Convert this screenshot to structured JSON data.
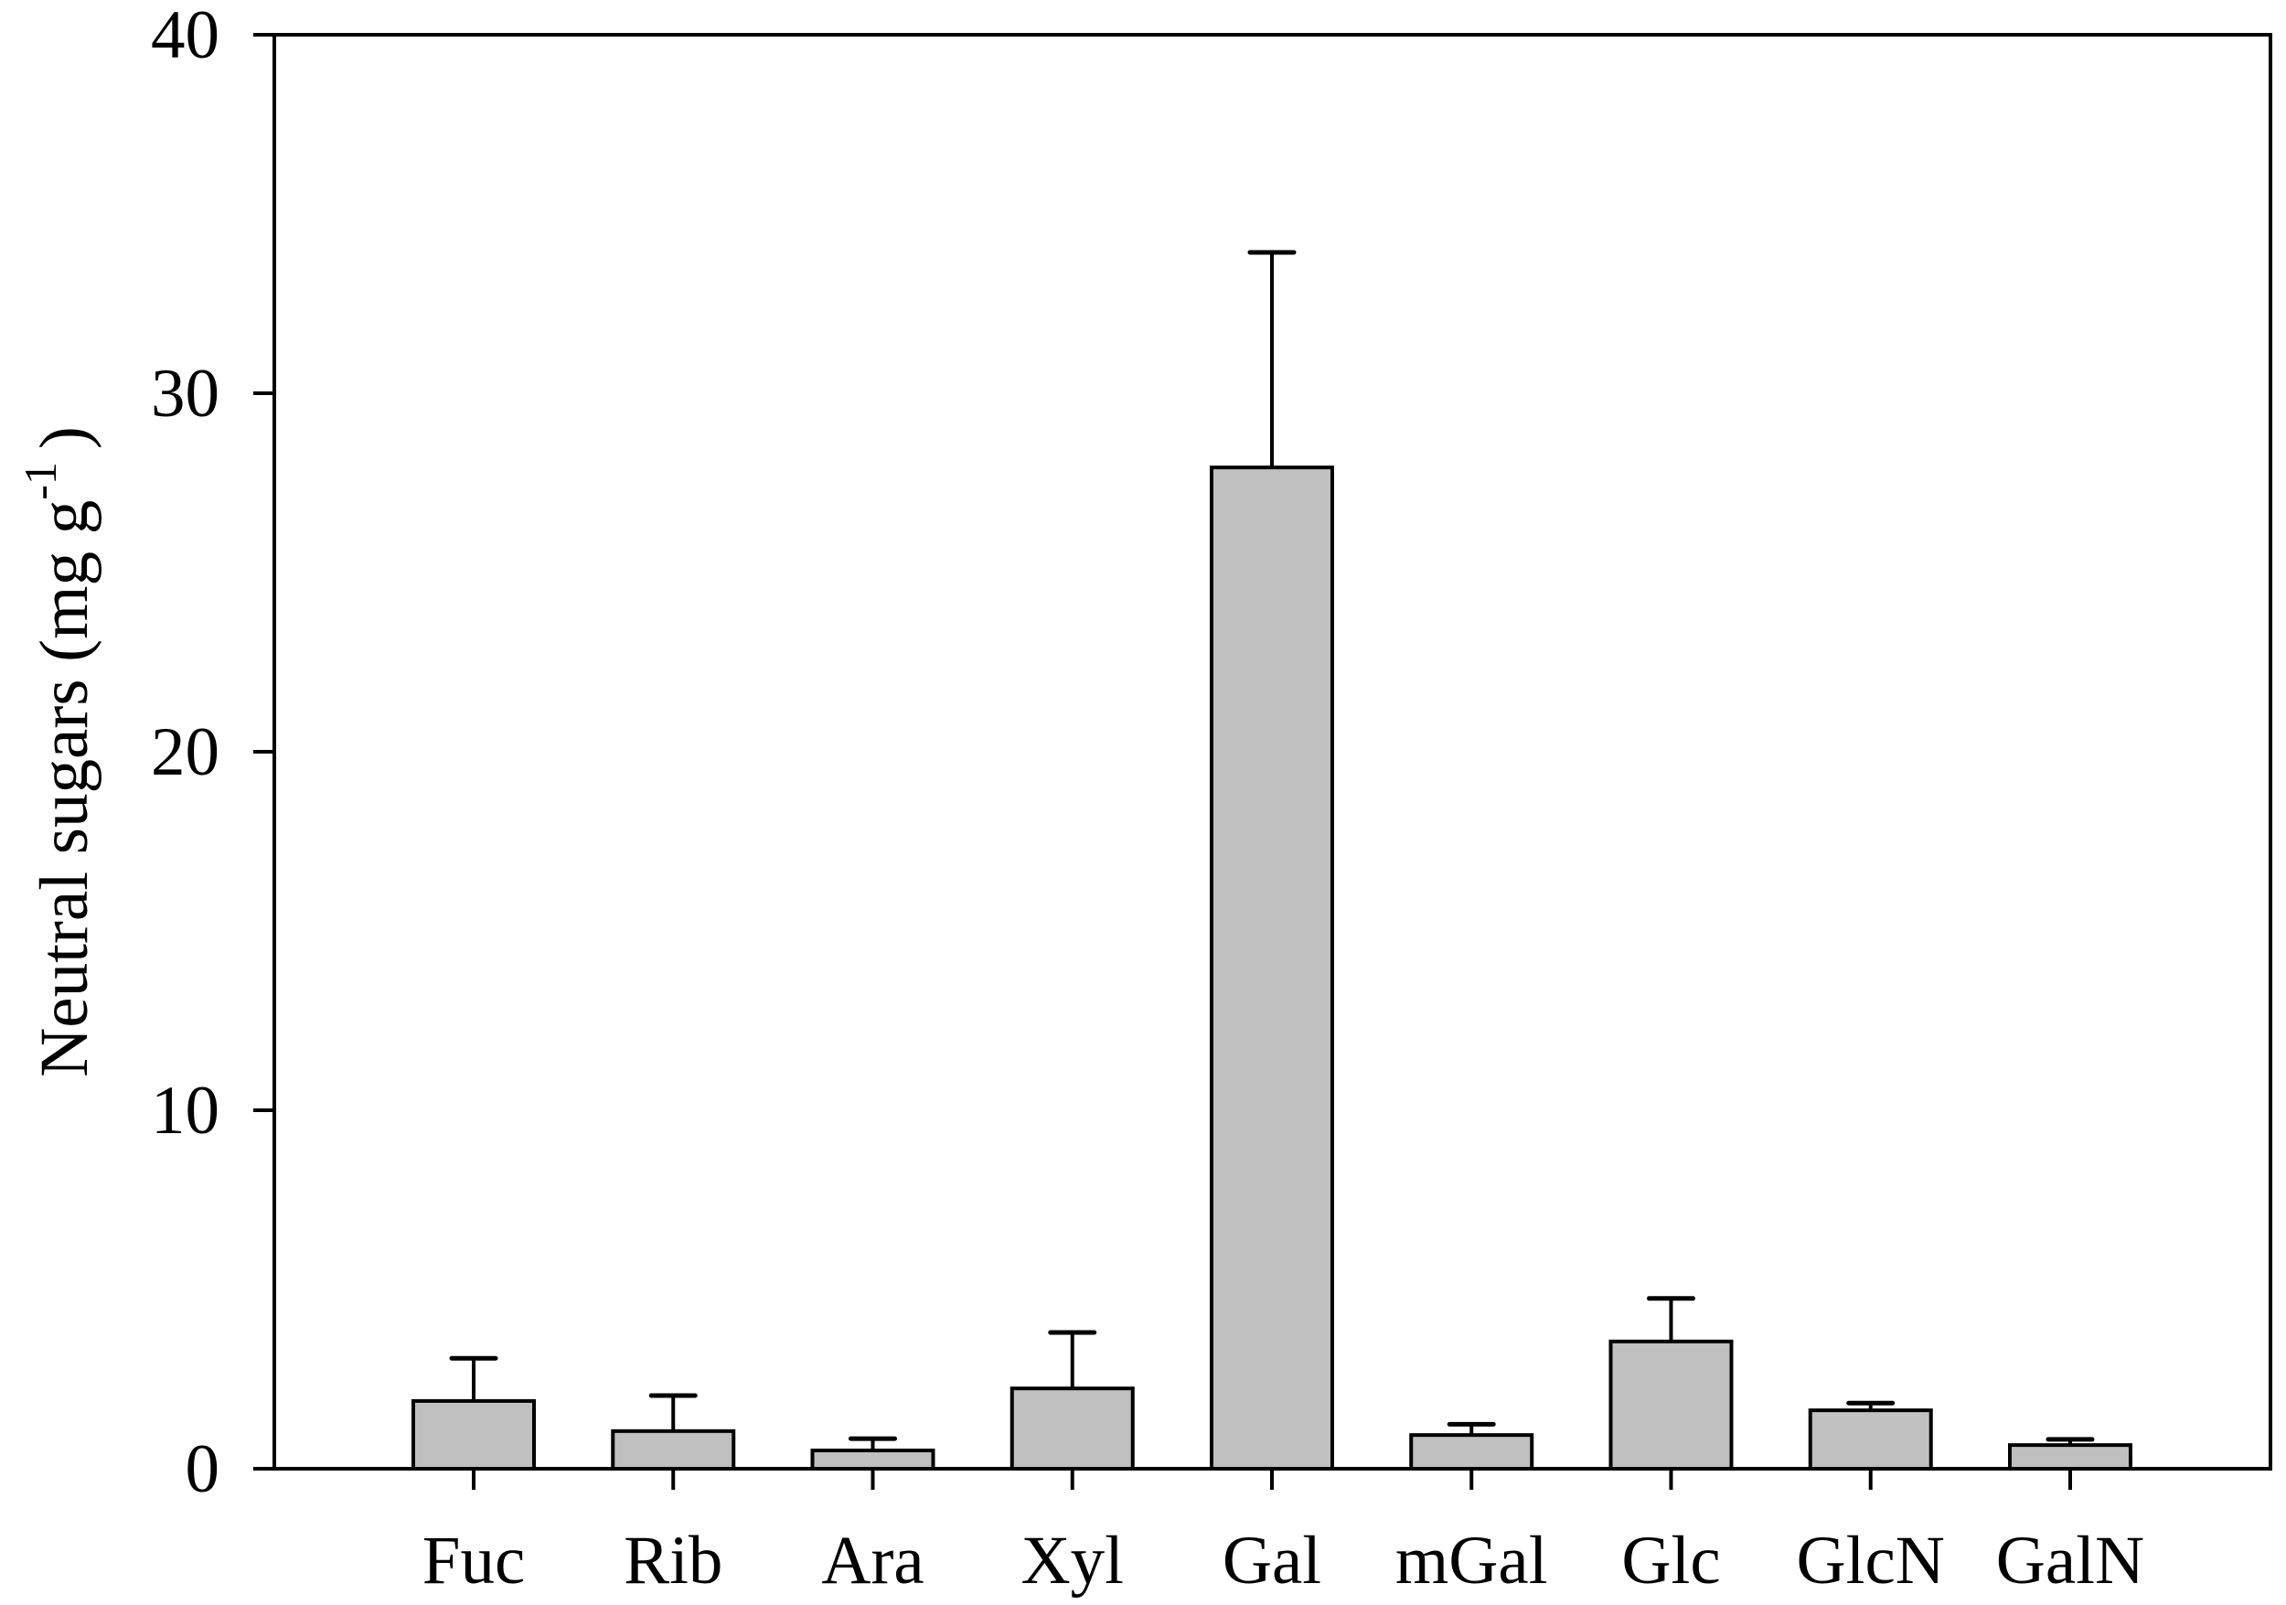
{
  "chart_data": {
    "type": "bar",
    "title": "",
    "xlabel": "",
    "ylabel": "Neutral sugars (mg g",
    "ylabel_superscript": "-1",
    "ylabel_close": ")",
    "ylim": [
      0,
      40
    ],
    "yticks": [
      0,
      10,
      20,
      30,
      40
    ],
    "grid": false,
    "legend": null,
    "categories": [
      "Fuc",
      "Rib",
      "Ara",
      "Xyl",
      "Gal",
      "mGal",
      "Glc",
      "GlcN",
      "GalN"
    ],
    "values": [
      1.89,
      1.05,
      0.51,
      2.24,
      27.93,
      0.94,
      3.55,
      1.63,
      0.66
    ],
    "error_upper": [
      3.08,
      2.04,
      0.84,
      3.8,
      33.93,
      1.24,
      4.75,
      1.83,
      0.82
    ],
    "error_type": "upper-only",
    "colors": {
      "bar_fill": "#c0c0c0",
      "bar_stroke": "#000000",
      "axis": "#000000",
      "text": "#000000"
    }
  }
}
